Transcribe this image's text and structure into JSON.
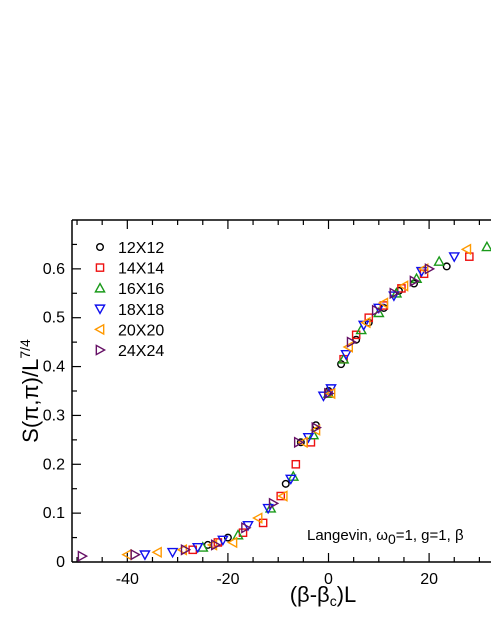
{
  "chart_data": {
    "type": "scatter",
    "xlabel": "(β-β_c)L",
    "ylabel": "S(π,π)/L^{7/4}",
    "annotation": "Langevin, ω_0=1, g=1, β",
    "xlim": [
      -51,
      33.5
    ],
    "ylim": [
      0,
      0.7
    ],
    "x_ticks": [
      -40,
      -20,
      0,
      20
    ],
    "y_ticks": [
      0,
      0.1,
      0.2,
      0.3,
      0.4,
      0.5,
      0.6
    ],
    "grid": false,
    "legend_position": "top-left",
    "series": [
      {
        "name": "12X12",
        "marker": "circle",
        "color": "#000000",
        "points": [
          [
            -24,
            0.035
          ],
          [
            -20,
            0.05
          ],
          [
            -8.5,
            0.16
          ],
          [
            -5.5,
            0.245
          ],
          [
            -2.5,
            0.28
          ],
          [
            0,
            0.35
          ],
          [
            2.5,
            0.405
          ],
          [
            5.5,
            0.455
          ],
          [
            8,
            0.49
          ],
          [
            11,
            0.52
          ],
          [
            14,
            0.555
          ],
          [
            17,
            0.57
          ],
          [
            23.5,
            0.605
          ]
        ]
      },
      {
        "name": "14X14",
        "marker": "square",
        "color": "#ee1111",
        "points": [
          [
            -27,
            0.025
          ],
          [
            -22,
            0.04
          ],
          [
            -17,
            0.06
          ],
          [
            -13,
            0.08
          ],
          [
            -9.5,
            0.135
          ],
          [
            -6.5,
            0.2
          ],
          [
            -3.5,
            0.245
          ],
          [
            0,
            0.345
          ],
          [
            3,
            0.415
          ],
          [
            5.5,
            0.465
          ],
          [
            8,
            0.5
          ],
          [
            11,
            0.525
          ],
          [
            14.5,
            0.56
          ],
          [
            19,
            0.59
          ],
          [
            28,
            0.625
          ]
        ]
      },
      {
        "name": "16X16",
        "marker": "triangle-up",
        "color": "#1a9a1a",
        "points": [
          [
            -25,
            0.03
          ],
          [
            -18,
            0.055
          ],
          [
            -11.5,
            0.11
          ],
          [
            -7,
            0.175
          ],
          [
            -3,
            0.26
          ],
          [
            0,
            0.345
          ],
          [
            3,
            0.415
          ],
          [
            6.5,
            0.475
          ],
          [
            10,
            0.51
          ],
          [
            13.5,
            0.55
          ],
          [
            17.5,
            0.58
          ],
          [
            22,
            0.615
          ],
          [
            31.5,
            0.645
          ]
        ]
      },
      {
        "name": "18X18",
        "marker": "triangle-down",
        "color": "#1010ee",
        "points": [
          [
            -36.5,
            0.015
          ],
          [
            -31,
            0.02
          ],
          [
            -26,
            0.03
          ],
          [
            -21,
            0.045
          ],
          [
            -16,
            0.075
          ],
          [
            -12,
            0.11
          ],
          [
            -7.5,
            0.17
          ],
          [
            -4,
            0.255
          ],
          [
            -1,
            0.34
          ],
          [
            0.5,
            0.355
          ],
          [
            3.5,
            0.425
          ],
          [
            7,
            0.485
          ],
          [
            10,
            0.52
          ],
          [
            13,
            0.545
          ],
          [
            18.5,
            0.595
          ],
          [
            25,
            0.625
          ]
        ]
      },
      {
        "name": "20X20",
        "marker": "triangle-left",
        "color": "#ff9900",
        "points": [
          [
            -40,
            0.015
          ],
          [
            -34,
            0.02
          ],
          [
            -29,
            0.025
          ],
          [
            -23,
            0.035
          ],
          [
            -19,
            0.04
          ],
          [
            -14,
            0.09
          ],
          [
            -9,
            0.135
          ],
          [
            -5,
            0.245
          ],
          [
            -2.5,
            0.27
          ],
          [
            0.5,
            0.345
          ],
          [
            4,
            0.44
          ],
          [
            7.5,
            0.49
          ],
          [
            11,
            0.53
          ],
          [
            15,
            0.565
          ],
          [
            19,
            0.6
          ],
          [
            27.5,
            0.64
          ]
        ]
      },
      {
        "name": "24X24",
        "marker": "triangle-right",
        "color": "#661166",
        "points": [
          [
            -49,
            0.012
          ],
          [
            -38.5,
            0.015
          ],
          [
            -28.5,
            0.025
          ],
          [
            -22.5,
            0.035
          ],
          [
            -16.5,
            0.07
          ],
          [
            -11,
            0.12
          ],
          [
            -6,
            0.245
          ],
          [
            -2.5,
            0.275
          ],
          [
            0,
            0.345
          ],
          [
            4.5,
            0.45
          ],
          [
            9.5,
            0.515
          ],
          [
            13,
            0.55
          ],
          [
            17,
            0.575
          ],
          [
            20,
            0.6
          ]
        ]
      }
    ]
  }
}
